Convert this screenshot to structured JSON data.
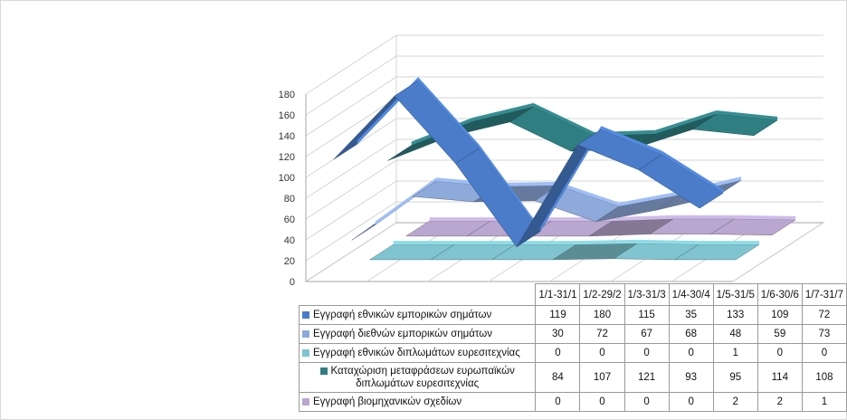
{
  "chart_data": {
    "type": "line",
    "categories": [
      "1/1-31/1",
      "1/2-29/2",
      "1/3-31/3",
      "1/4-30/4",
      "1/5-31/5",
      "1/6-30/6",
      "1/7-31/7"
    ],
    "series": [
      {
        "name": "Εγγραφή  εθνικών  εμπορικών  σημάτων",
        "values": [
          119,
          180,
          115,
          35,
          133,
          109,
          72
        ],
        "color": "#4a7cc9"
      },
      {
        "name": "Εγγραφή  διεθνών  εμπορικών  σημάτων",
        "values": [
          30,
          72,
          67,
          68,
          48,
          59,
          73
        ],
        "color": "#8eaadb"
      },
      {
        "name": "Εγγραφή  εθνικών  διπλωμάτων  ευρεσιτεχνίας",
        "values": [
          0,
          0,
          0,
          0,
          1,
          0,
          0
        ],
        "color": "#7fc4cf"
      },
      {
        "name": "Καταχώριση  μεταφράσεων  ευρωπαϊκών  διπλωμάτων ευρεσιτεχνίας",
        "values": [
          84,
          107,
          121,
          93,
          95,
          114,
          108
        ],
        "color": "#2f7f82"
      },
      {
        "name": "Εγγραφή  βιομηχανικών  σχεδίων",
        "values": [
          0,
          0,
          0,
          0,
          2,
          2,
          1
        ],
        "color": "#b9a7cf"
      }
    ],
    "y_ticks": [
      0,
      20,
      40,
      60,
      80,
      100,
      120,
      140,
      160,
      180
    ],
    "ylim": [
      0,
      180
    ],
    "grid": true,
    "legend": "table-below"
  }
}
